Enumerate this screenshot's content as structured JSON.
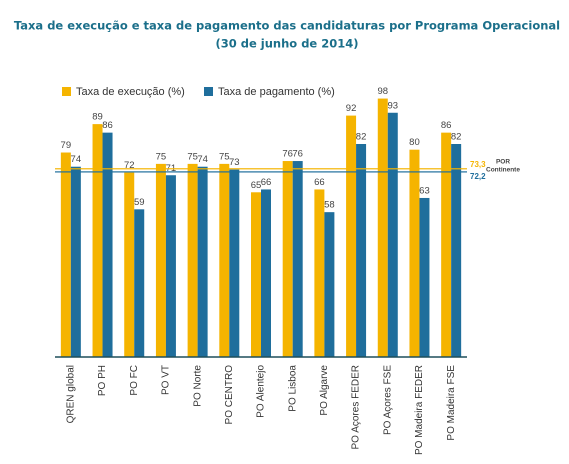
{
  "chart_data": {
    "type": "bar",
    "title": [
      "Taxa de execução e taxa de pagamento das candidaturas por Programa Operacional",
      "(30 de junho de 2014)"
    ],
    "categories": [
      "QREN global",
      "PO PH",
      "PO FC",
      "PO VT",
      "PO Norte",
      "PO CENTRO",
      "PO Alentejo",
      "PO Lisboa",
      "PO Algarve",
      "PO Açores FEDER",
      "PO Açores FSE",
      "PO Madeira FEDER",
      "PO Madeira FSE"
    ],
    "series": [
      {
        "name": "Taxa de execução (%)",
        "color": "#f5b400",
        "values": [
          79,
          89,
          72,
          75,
          75,
          75,
          65,
          76,
          66,
          92,
          98,
          80,
          86
        ]
      },
      {
        "name": "Taxa de pagamento (%)",
        "color": "#1f6e9c",
        "values": [
          74,
          86,
          59,
          71,
          74,
          73,
          66,
          76,
          58,
          82,
          93,
          63,
          82
        ]
      }
    ],
    "reference_lines": [
      {
        "value": 73.3,
        "label": "73,3",
        "color": "#f5b400"
      },
      {
        "value": 72.2,
        "label": "72,2",
        "color": "#1f6e9c"
      }
    ],
    "reference_note": [
      "POR",
      "Continente"
    ],
    "ylim": [
      7,
      100
    ],
    "legend": "top-left"
  }
}
